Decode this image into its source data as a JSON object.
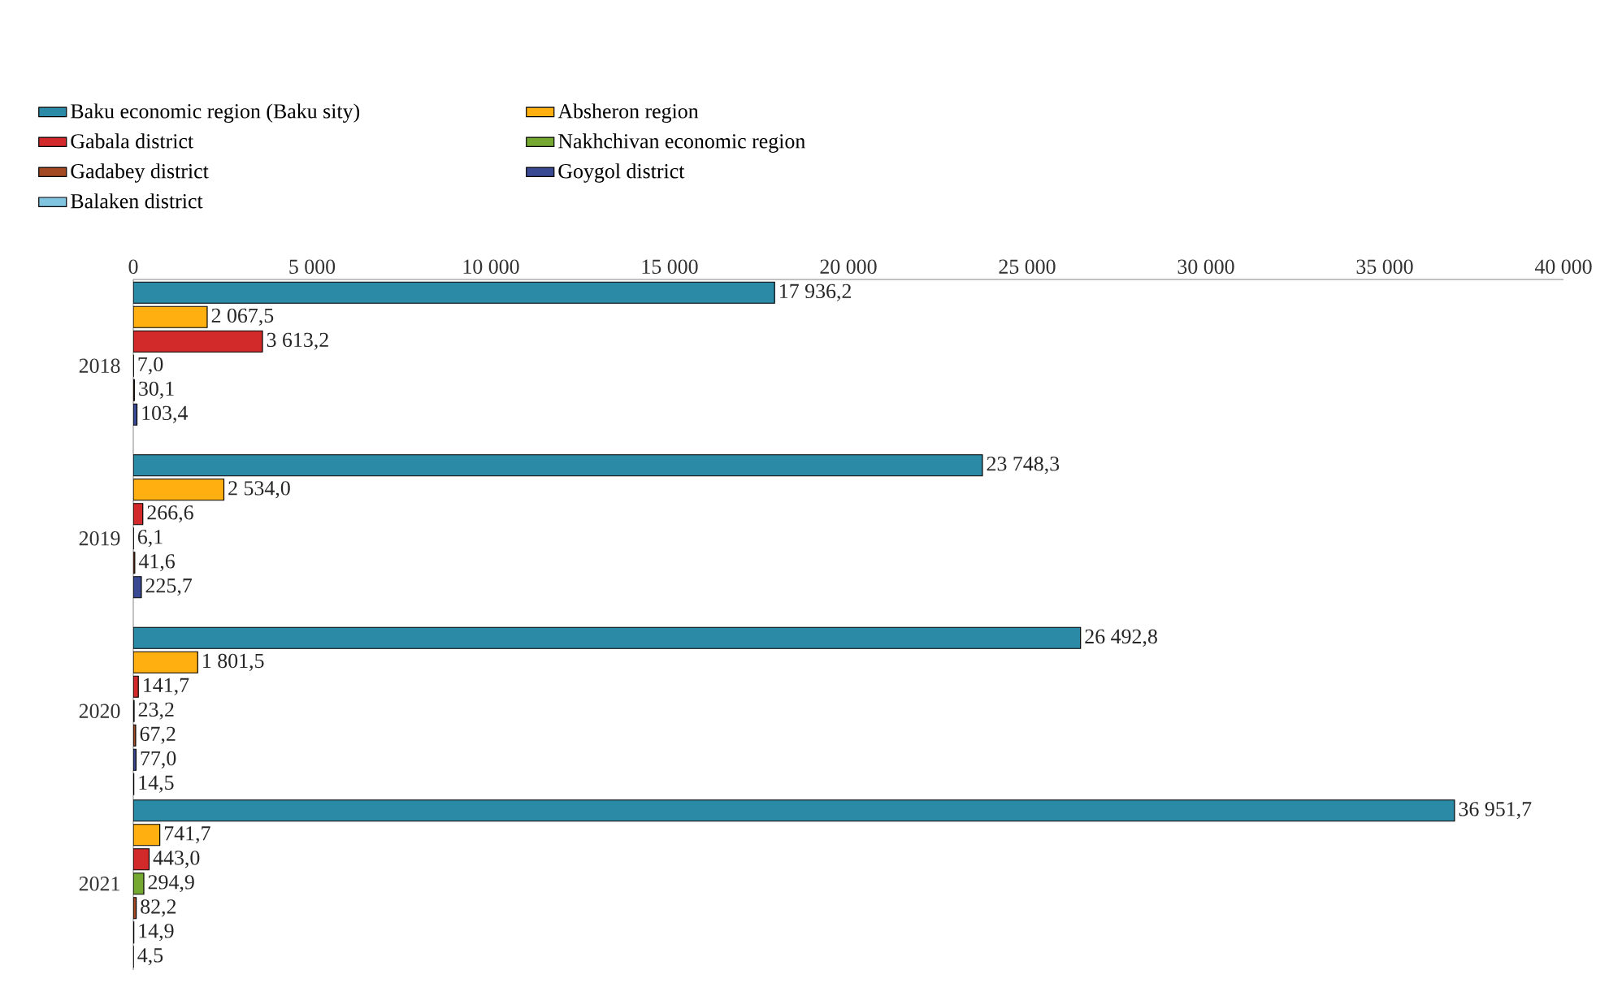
{
  "chart_data": {
    "type": "bar",
    "orientation": "horizontal",
    "legend": "top",
    "categories": [
      "2018",
      "2019",
      "2020",
      "2021"
    ],
    "xlim": [
      0,
      40000
    ],
    "xticks": [
      0,
      {
        "value": 5000,
        "label": "5 000"
      },
      {
        "value": 10000,
        "label": "10 000"
      },
      {
        "value": 15000,
        "label": "15 000"
      },
      {
        "value": 20000,
        "label": "20 000"
      },
      {
        "value": 25000,
        "label": "25 000"
      },
      {
        "value": 30000,
        "label": "30 000"
      },
      {
        "value": 35000,
        "label": "35 000"
      },
      {
        "value": 40000,
        "label": "40 000"
      }
    ],
    "series": [
      {
        "name": "Baku economic region (Baku sity)",
        "color": "#2b8aa6",
        "values": [
          17936.2,
          23748.3,
          26492.8,
          36951.7
        ],
        "value_labels": [
          "17 936,2",
          "23 748,3",
          "26 492,8",
          "36 951,7"
        ]
      },
      {
        "name": "Absheron region",
        "color": "#ffb010",
        "values": [
          2067.5,
          2534.0,
          1801.5,
          741.7
        ],
        "value_labels": [
          "2 067,5",
          "2 534,0",
          "1 801,5",
          "741,7"
        ]
      },
      {
        "name": "Gabala district",
        "color": "#d22a2a",
        "values": [
          3613.2,
          266.6,
          141.7,
          443.0
        ],
        "value_labels": [
          "3 613,2",
          "266,6",
          "141,7",
          "443,0"
        ]
      },
      {
        "name": "Nakhchivan economic region",
        "color": "#74a830",
        "values": [
          7.0,
          6.1,
          23.2,
          294.9
        ],
        "value_labels": [
          "7,0",
          "6,1",
          "23,2",
          "294,9"
        ]
      },
      {
        "name": "Gadabey district",
        "color": "#a34a22",
        "values": [
          30.1,
          41.6,
          67.2,
          82.2
        ],
        "value_labels": [
          "30,1",
          "41,6",
          "67,2",
          "82,2"
        ]
      },
      {
        "name": "Goygol district",
        "color": "#3a4a92",
        "values": [
          103.4,
          225.7,
          77.0,
          14.9
        ],
        "value_labels": [
          "103,4",
          "225,7",
          "77,0",
          "14,9"
        ]
      },
      {
        "name": "Balaken district",
        "color": "#80c4e0",
        "values": [
          null,
          null,
          14.5,
          4.5
        ],
        "value_labels": [
          null,
          null,
          "14,5",
          "4,5"
        ]
      }
    ]
  }
}
